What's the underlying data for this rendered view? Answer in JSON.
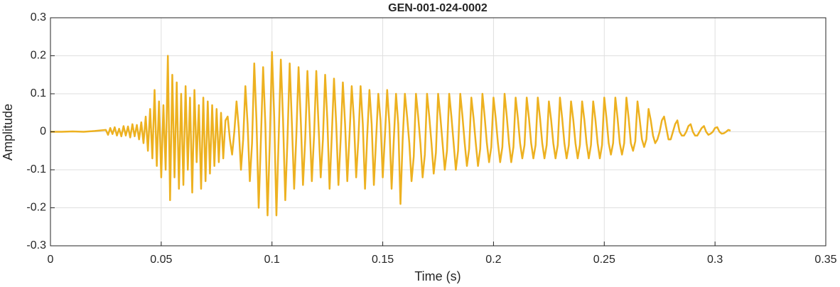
{
  "chart_data": {
    "type": "line",
    "title": "GEN-001-024-0002",
    "xlabel": "Time (s)",
    "ylabel": "Amplitude",
    "color": "#EDB120",
    "grid": true,
    "xlim": [
      0,
      0.35
    ],
    "ylim": [
      -0.3,
      0.3
    ],
    "xticks": [
      0,
      0.05,
      0.1,
      0.15,
      0.2,
      0.25,
      0.3,
      0.35
    ],
    "yticks": [
      -0.3,
      -0.2,
      -0.1,
      0,
      0.1,
      0.2,
      0.3
    ],
    "x": [
      0,
      0.005,
      0.01,
      0.015,
      0.02,
      0.025,
      0.026,
      0.027,
      0.028,
      0.029,
      0.03,
      0.031,
      0.032,
      0.033,
      0.034,
      0.035,
      0.036,
      0.037,
      0.038,
      0.039,
      0.04,
      0.041,
      0.042,
      0.043,
      0.044,
      0.045,
      0.046,
      0.047,
      0.048,
      0.049,
      0.05,
      0.051,
      0.052,
      0.053,
      0.054,
      0.055,
      0.056,
      0.057,
      0.058,
      0.059,
      0.06,
      0.061,
      0.062,
      0.063,
      0.064,
      0.065,
      0.066,
      0.067,
      0.068,
      0.069,
      0.07,
      0.071,
      0.072,
      0.073,
      0.074,
      0.075,
      0.076,
      0.077,
      0.078,
      0.079,
      0.08,
      0.081,
      0.082,
      0.083,
      0.084,
      0.085,
      0.086,
      0.087,
      0.088,
      0.089,
      0.09,
      0.091,
      0.092,
      0.093,
      0.094,
      0.095,
      0.096,
      0.097,
      0.098,
      0.099,
      0.1,
      0.101,
      0.102,
      0.103,
      0.104,
      0.105,
      0.106,
      0.107,
      0.108,
      0.109,
      0.11,
      0.111,
      0.112,
      0.113,
      0.114,
      0.115,
      0.116,
      0.117,
      0.118,
      0.119,
      0.12,
      0.121,
      0.122,
      0.123,
      0.124,
      0.125,
      0.126,
      0.127,
      0.128,
      0.129,
      0.13,
      0.131,
      0.132,
      0.133,
      0.134,
      0.135,
      0.136,
      0.137,
      0.138,
      0.139,
      0.14,
      0.141,
      0.142,
      0.143,
      0.144,
      0.145,
      0.146,
      0.147,
      0.148,
      0.149,
      0.15,
      0.151,
      0.152,
      0.153,
      0.154,
      0.155,
      0.156,
      0.157,
      0.158,
      0.159,
      0.16,
      0.161,
      0.162,
      0.163,
      0.164,
      0.165,
      0.166,
      0.167,
      0.168,
      0.169,
      0.17,
      0.171,
      0.172,
      0.173,
      0.174,
      0.175,
      0.176,
      0.177,
      0.178,
      0.179,
      0.18,
      0.181,
      0.182,
      0.183,
      0.184,
      0.185,
      0.186,
      0.187,
      0.188,
      0.189,
      0.19,
      0.191,
      0.192,
      0.193,
      0.194,
      0.195,
      0.196,
      0.197,
      0.198,
      0.199,
      0.2,
      0.201,
      0.202,
      0.203,
      0.204,
      0.205,
      0.206,
      0.207,
      0.208,
      0.209,
      0.21,
      0.211,
      0.212,
      0.213,
      0.214,
      0.215,
      0.216,
      0.217,
      0.218,
      0.219,
      0.22,
      0.221,
      0.222,
      0.223,
      0.224,
      0.225,
      0.226,
      0.227,
      0.228,
      0.229,
      0.23,
      0.231,
      0.232,
      0.233,
      0.234,
      0.235,
      0.236,
      0.237,
      0.238,
      0.239,
      0.24,
      0.241,
      0.242,
      0.243,
      0.244,
      0.245,
      0.246,
      0.247,
      0.248,
      0.249,
      0.25,
      0.251,
      0.252,
      0.253,
      0.254,
      0.255,
      0.256,
      0.257,
      0.258,
      0.259,
      0.26,
      0.261,
      0.262,
      0.263,
      0.264,
      0.265,
      0.266,
      0.267,
      0.268,
      0.269,
      0.27,
      0.271,
      0.272,
      0.273,
      0.274,
      0.275,
      0.276,
      0.277,
      0.278,
      0.279,
      0.28,
      0.281,
      0.282,
      0.283,
      0.284,
      0.285,
      0.286,
      0.287,
      0.288,
      0.289,
      0.29,
      0.291,
      0.292,
      0.293,
      0.294,
      0.295,
      0.296,
      0.297,
      0.298,
      0.299,
      0.3,
      0.301,
      0.302,
      0.303,
      0.304,
      0.305,
      0.306,
      0.307
    ],
    "values": [
      0,
      0,
      0.001,
      0,
      0.002,
      0.005,
      -0.008,
      0.01,
      -0.006,
      0.012,
      -0.01,
      0.008,
      -0.012,
      0.015,
      -0.01,
      0.014,
      -0.015,
      0.02,
      -0.012,
      0.018,
      -0.02,
      0.025,
      -0.03,
      0.04,
      -0.05,
      0.06,
      -0.07,
      0.11,
      -0.09,
      0.08,
      -0.12,
      0.07,
      -0.1,
      0.2,
      -0.18,
      0.15,
      -0.12,
      0.13,
      -0.15,
      0.1,
      -0.14,
      0.12,
      -0.1,
      0.09,
      -0.16,
      0.11,
      -0.08,
      0.07,
      -0.15,
      0.09,
      -0.13,
      0.08,
      -0.11,
      0.07,
      -0.09,
      0.06,
      -0.08,
      0.05,
      -0.07,
      0.03,
      0.04,
      -0.02,
      -0.06,
      0,
      0.08,
      0.01,
      -0.1,
      -0.02,
      0.12,
      0.02,
      -0.13,
      -0.03,
      0.18,
      0.03,
      -0.2,
      -0.02,
      0.17,
      0.02,
      -0.22,
      -0.03,
      0.21,
      0.04,
      -0.22,
      -0.02,
      0.19,
      0.03,
      -0.18,
      -0.02,
      0.18,
      0.02,
      -0.15,
      -0.01,
      0.17,
      0.03,
      -0.14,
      -0.02,
      0.16,
      0.02,
      -0.13,
      -0.01,
      0.16,
      0.02,
      -0.12,
      -0.02,
      0.15,
      0.03,
      -0.15,
      -0.01,
      0.14,
      0.02,
      -0.14,
      -0.02,
      0.13,
      0.02,
      -0.13,
      -0.01,
      0.12,
      0.03,
      -0.12,
      -0.02,
      0.12,
      0.02,
      -0.15,
      -0.01,
      0.11,
      0.02,
      -0.14,
      -0.02,
      0.1,
      0.03,
      -0.12,
      -0.01,
      0.11,
      0.02,
      -0.15,
      -0.02,
      0.1,
      0.02,
      -0.19,
      -0.02,
      0.1,
      0.04,
      -0.03,
      -0.13,
      -0.065,
      0.1,
      0.04,
      -0.03,
      -0.12,
      -0.06,
      0.1,
      0.04,
      -0.03,
      -0.11,
      -0.055,
      0.1,
      0.04,
      -0.03,
      -0.1,
      -0.05,
      0.1,
      0.04,
      -0.03,
      -0.1,
      -0.05,
      0.1,
      0.04,
      -0.03,
      -0.09,
      -0.045,
      0.09,
      0.036,
      -0.03,
      -0.09,
      -0.045,
      0.1,
      0.04,
      -0.03,
      -0.08,
      -0.04,
      0.09,
      0.036,
      -0.03,
      -0.08,
      -0.04,
      0.1,
      0.04,
      -0.03,
      -0.08,
      -0.04,
      0.09,
      0.036,
      -0.03,
      -0.07,
      -0.035,
      0.09,
      0.036,
      -0.03,
      -0.07,
      -0.035,
      0.09,
      0.036,
      -0.03,
      -0.07,
      -0.035,
      0.08,
      0.032,
      -0.03,
      -0.07,
      -0.035,
      0.09,
      0.036,
      -0.03,
      -0.07,
      -0.035,
      0.08,
      0.032,
      -0.03,
      -0.07,
      -0.035,
      0.08,
      0.032,
      -0.03,
      -0.07,
      -0.035,
      0.08,
      0.032,
      -0.03,
      -0.07,
      -0.035,
      0.09,
      0.036,
      -0.03,
      -0.06,
      -0.03,
      0.09,
      0.036,
      -0.03,
      -0.06,
      -0.03,
      0.09,
      0.036,
      -0.03,
      -0.05,
      -0.025,
      0.08,
      0.032,
      -0.02,
      -0.04,
      -0.02,
      0.06,
      0.03,
      -0.01,
      -0.03,
      -0.02,
      0,
      0.03,
      0.04,
      0.01,
      -0.02,
      -0.02,
      0,
      0.02,
      0.03,
      0,
      -0.01,
      -0.01,
      0,
      0.015,
      0.02,
      0,
      -0.01,
      -0.01,
      0,
      0.01,
      0.015,
      0,
      -0.008,
      -0.005,
      0,
      0.01,
      0.012,
      0,
      -0.005,
      -0.004,
      0,
      0.005,
      0.003
    ]
  }
}
